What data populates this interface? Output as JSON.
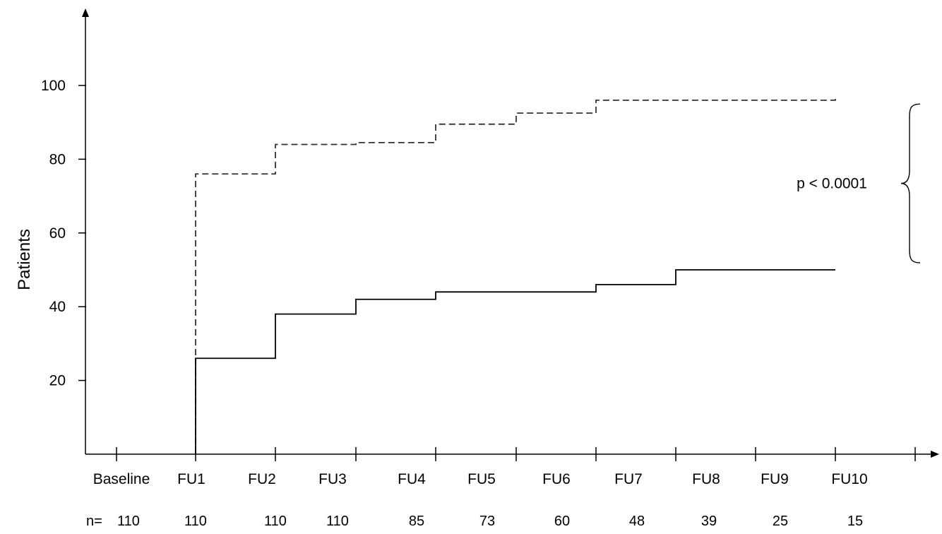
{
  "chart_data": {
    "type": "line",
    "ylabel": "Patients",
    "xlabel": "",
    "ylim": [
      0,
      110
    ],
    "yticks": [
      20,
      40,
      60,
      80,
      100
    ],
    "categories": [
      "Baseline",
      "FU1",
      "FU2",
      "FU3",
      "FU4",
      "FU5",
      "FU6",
      "FU7",
      "FU8",
      "FU9",
      "FU10"
    ],
    "n_prefix": "n=",
    "n_values": [
      "110",
      "110",
      "110",
      "110",
      "85",
      "73",
      "60",
      "48",
      "39",
      "25",
      "15"
    ],
    "series": [
      {
        "style": "dashed",
        "color": "#333333",
        "steps": [
          {
            "from": "FU1",
            "to": "FU2",
            "y": 76
          },
          {
            "from": "FU2",
            "to": "FU3",
            "y": 84
          },
          {
            "from": "FU3",
            "to": "FU4",
            "y": 84.5
          },
          {
            "from": "FU4",
            "to": "FU5",
            "y": 89.5
          },
          {
            "from": "FU5",
            "to": "FU6",
            "y": 92.5
          },
          {
            "from": "FU6",
            "to": "FU7",
            "y": 96
          },
          {
            "from": "FU7",
            "to": "FU8",
            "y": 96
          },
          {
            "from": "FU8",
            "to": "FU9",
            "y": 96
          },
          {
            "from": "FU9",
            "to": "FU10",
            "y": 96.5
          },
          {
            "from": "FU10",
            "to": "end",
            "y": 96.5
          }
        ]
      },
      {
        "style": "solid",
        "color": "#000000",
        "steps": [
          {
            "from": "FU1",
            "to": "FU2",
            "y": 26
          },
          {
            "from": "FU2",
            "to": "FU3",
            "y": 38
          },
          {
            "from": "FU3",
            "to": "FU4",
            "y": 42
          },
          {
            "from": "FU4",
            "to": "FU5",
            "y": 44
          },
          {
            "from": "FU5",
            "to": "FU6",
            "y": 44
          },
          {
            "from": "FU6",
            "to": "FU7",
            "y": 46
          },
          {
            "from": "FU7",
            "to": "FU8",
            "y": 50
          },
          {
            "from": "FU8",
            "to": "FU9",
            "y": 50
          },
          {
            "from": "FU9",
            "to": "FU10",
            "y": 50
          },
          {
            "from": "FU10",
            "to": "end",
            "y": 50
          }
        ]
      }
    ],
    "annotation": {
      "text": "p < 0.0001",
      "bracket_from": 96.5,
      "bracket_to": 50
    },
    "grid": false,
    "legend": "none"
  }
}
